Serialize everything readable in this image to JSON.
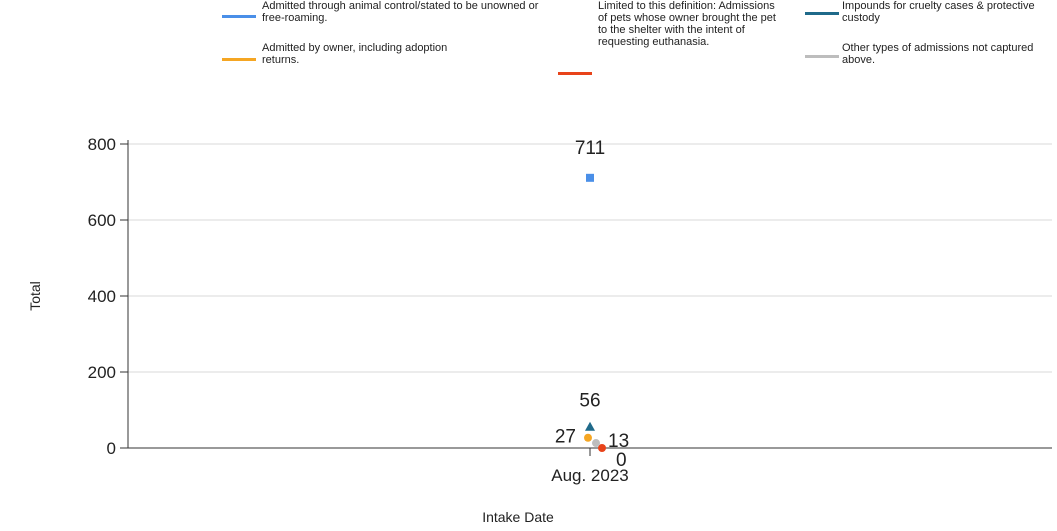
{
  "chart_data": {
    "type": "line",
    "xlabel": "Intake Date",
    "ylabel": "Total",
    "categories": [
      "Aug. 2023"
    ],
    "series": [
      {
        "name": "Admitted through animal control/stated to be unowned or free-roaming.",
        "color": "#4a8fe8",
        "marker": "square",
        "values": [
          711
        ]
      },
      {
        "name": "Admitted by owner, including adoption returns.",
        "color": "#f5a623",
        "marker": "circle",
        "values": [
          27
        ]
      },
      {
        "name": "Limited to this definition: Admissions of pets whose owner brought the pet to the shelter with the intent of requesting euthanasia.",
        "color": "#e8431a",
        "marker": "circle",
        "values": [
          0
        ]
      },
      {
        "name": "Impounds for cruelty cases & protective custody",
        "color": "#1f6a8a",
        "marker": "triangle",
        "values": [
          56
        ]
      },
      {
        "name": "Other types of admissions not captured above.",
        "color": "#bdbdbd",
        "marker": "circle",
        "values": [
          13
        ]
      }
    ],
    "ylim": [
      0,
      800
    ],
    "yticks": [
      0,
      200,
      400,
      600,
      800
    ],
    "grid": true
  }
}
